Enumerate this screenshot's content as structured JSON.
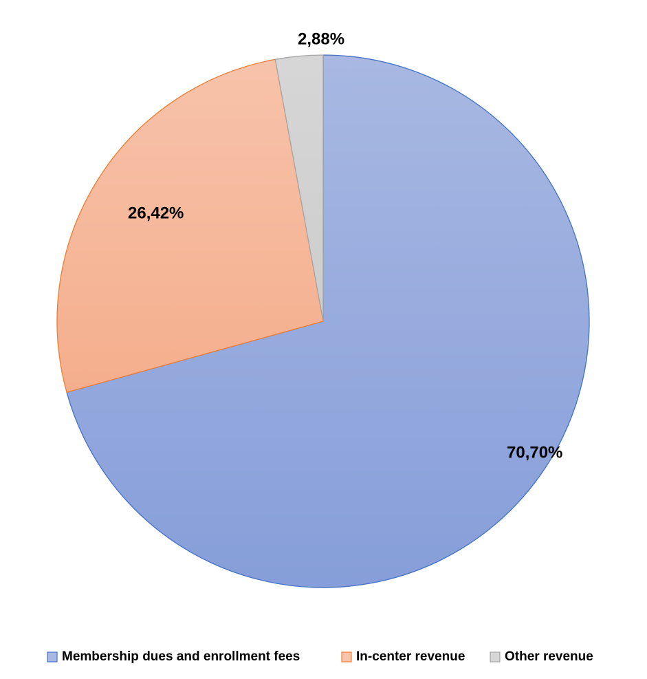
{
  "chart_data": {
    "type": "pie",
    "start_angle_deg": 0,
    "direction": "clockwise",
    "legend_position": "bottom",
    "slices": [
      {
        "name": "Membership dues and enrollment fees",
        "value": 70.7,
        "label": "70,70%",
        "color_top": "#a8b8e2",
        "color_bottom": "#869ed9",
        "stroke": "#4472c4"
      },
      {
        "name": "In-center revenue",
        "value": 26.42,
        "label": "26,42%",
        "color_top": "#f7c3ab",
        "color_bottom": "#f3a27b",
        "stroke": "#ed7d31"
      },
      {
        "name": "Other revenue",
        "value": 2.88,
        "label": "2,88%",
        "color_top": "#d6d6d6",
        "color_bottom": "#c4c4c4",
        "stroke": "#a5a5a5"
      }
    ]
  }
}
